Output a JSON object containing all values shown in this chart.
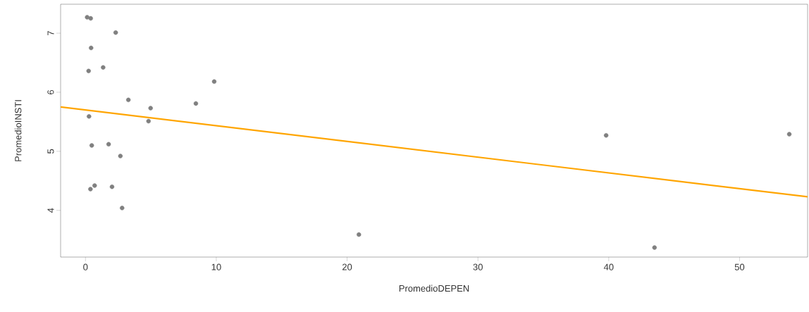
{
  "chart_data": {
    "type": "scatter",
    "xlabel": "PromedioDEPEN",
    "ylabel": "PromedioINSTI",
    "xlim": [
      -1.9,
      55.2
    ],
    "ylim": [
      3.21,
      7.49
    ],
    "xticks": [
      0,
      10,
      20,
      30,
      40,
      50
    ],
    "yticks": [
      4,
      5,
      6,
      7
    ],
    "grid": false,
    "series": [
      {
        "marker": "circle",
        "color": "#808080",
        "x": [
          0.13,
          0.4,
          2.31,
          0.43,
          0.24,
          1.35,
          9.84,
          3.28,
          4.98,
          8.44,
          4.82,
          0.27,
          0.48,
          1.77,
          2.67,
          0.38,
          0.7,
          2.03,
          2.8,
          20.9,
          39.8,
          43.5,
          53.8
        ],
        "values": [
          7.27,
          7.25,
          7.01,
          6.75,
          6.36,
          6.42,
          6.18,
          5.87,
          5.73,
          5.81,
          5.51,
          5.59,
          5.1,
          5.12,
          4.92,
          4.36,
          4.42,
          4.4,
          4.04,
          3.59,
          5.27,
          3.37,
          5.29
        ]
      },
      {
        "type": "line",
        "color": "#ffa500",
        "x": [
          -1.9,
          55.2
        ],
        "values": [
          5.75,
          4.23
        ]
      }
    ]
  }
}
